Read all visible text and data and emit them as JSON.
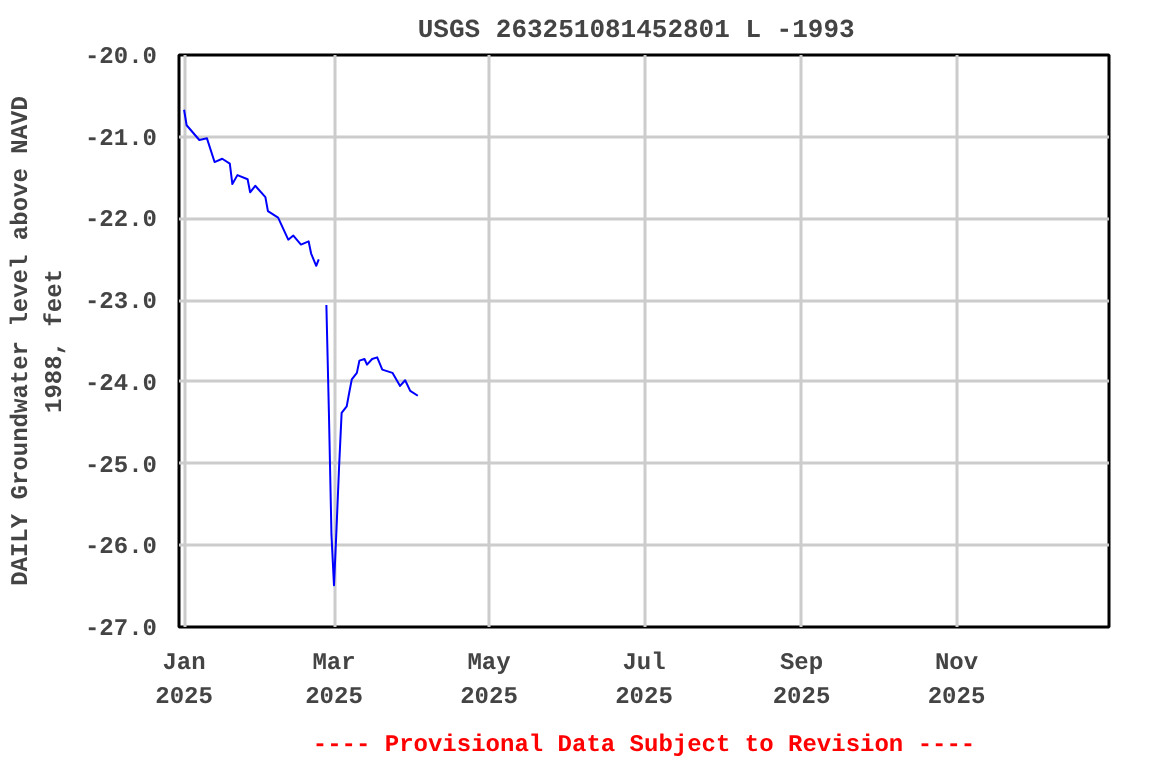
{
  "chart_data": {
    "type": "line",
    "title": "USGS 263251081452801 L  -1993",
    "ylabel": "DAILY Groundwater level above NAVD\n1988, feet",
    "x": [
      "2025-01-01",
      "2025-01-02",
      "2025-01-07",
      "2025-01-10",
      "2025-01-13",
      "2025-01-16",
      "2025-01-19",
      "2025-01-20",
      "2025-01-22",
      "2025-01-26",
      "2025-01-27",
      "2025-01-29",
      "2025-02-02",
      "2025-02-03",
      "2025-02-07",
      "2025-02-11",
      "2025-02-13",
      "2025-02-16",
      "2025-02-19",
      "2025-02-20",
      "2025-02-22",
      "2025-02-23",
      "2025-02-24",
      "2025-02-26",
      "2025-02-27",
      "2025-02-28",
      "2025-03-01",
      "2025-03-02",
      "2025-03-03",
      "2025-03-04",
      "2025-03-06",
      "2025-03-07",
      "2025-03-08",
      "2025-03-10",
      "2025-03-11",
      "2025-03-13",
      "2025-03-14",
      "2025-03-16",
      "2025-03-18",
      "2025-03-20",
      "2025-03-24",
      "2025-03-27",
      "2025-03-29",
      "2025-03-31",
      "2025-04-03"
    ],
    "series": [
      {
        "color": "#0000ff",
        "values": [
          -20.67,
          -20.86,
          -21.04,
          -21.02,
          -21.31,
          -21.27,
          -21.33,
          -21.58,
          -21.47,
          -21.52,
          -21.68,
          -21.6,
          -21.74,
          -21.91,
          -21.99,
          -22.26,
          -22.21,
          -22.32,
          -22.28,
          -22.43,
          -22.58,
          -22.5,
          null,
          -23.06,
          -24.38,
          -25.87,
          -26.49,
          -25.79,
          -25.04,
          -24.38,
          -24.3,
          -24.13,
          -23.97,
          -23.89,
          -23.74,
          -23.72,
          -23.79,
          -23.72,
          -23.7,
          -23.85,
          -23.89,
          -24.05,
          -23.98,
          -24.11,
          -24.17
        ]
      }
    ],
    "xlim": [
      "2024-12-30",
      "2025-12-31"
    ],
    "xticks": [
      {
        "value": "2025-01-01",
        "label": "Jan\n2025"
      },
      {
        "value": "2025-03-01",
        "label": "Mar\n2025"
      },
      {
        "value": "2025-05-01",
        "label": "May\n2025"
      },
      {
        "value": "2025-07-01",
        "label": "Jul\n2025"
      },
      {
        "value": "2025-09-01",
        "label": "Sep\n2025"
      },
      {
        "value": "2025-11-01",
        "label": "Nov\n2025"
      }
    ],
    "ylim": [
      -27,
      -20
    ],
    "yticks": [
      {
        "value": -27,
        "label": "-27.0"
      },
      {
        "value": -26,
        "label": "-26.0"
      },
      {
        "value": -25,
        "label": "-25.0"
      },
      {
        "value": -24,
        "label": "-24.0"
      },
      {
        "value": -23,
        "label": "-23.0"
      },
      {
        "value": -22,
        "label": "-22.0"
      },
      {
        "value": -21,
        "label": "-21.0"
      },
      {
        "value": -20,
        "label": "-20.0"
      }
    ],
    "grid": true,
    "line_style": "solid",
    "annotations": [
      "---- Provisional Data Subject to Revision ----"
    ]
  }
}
